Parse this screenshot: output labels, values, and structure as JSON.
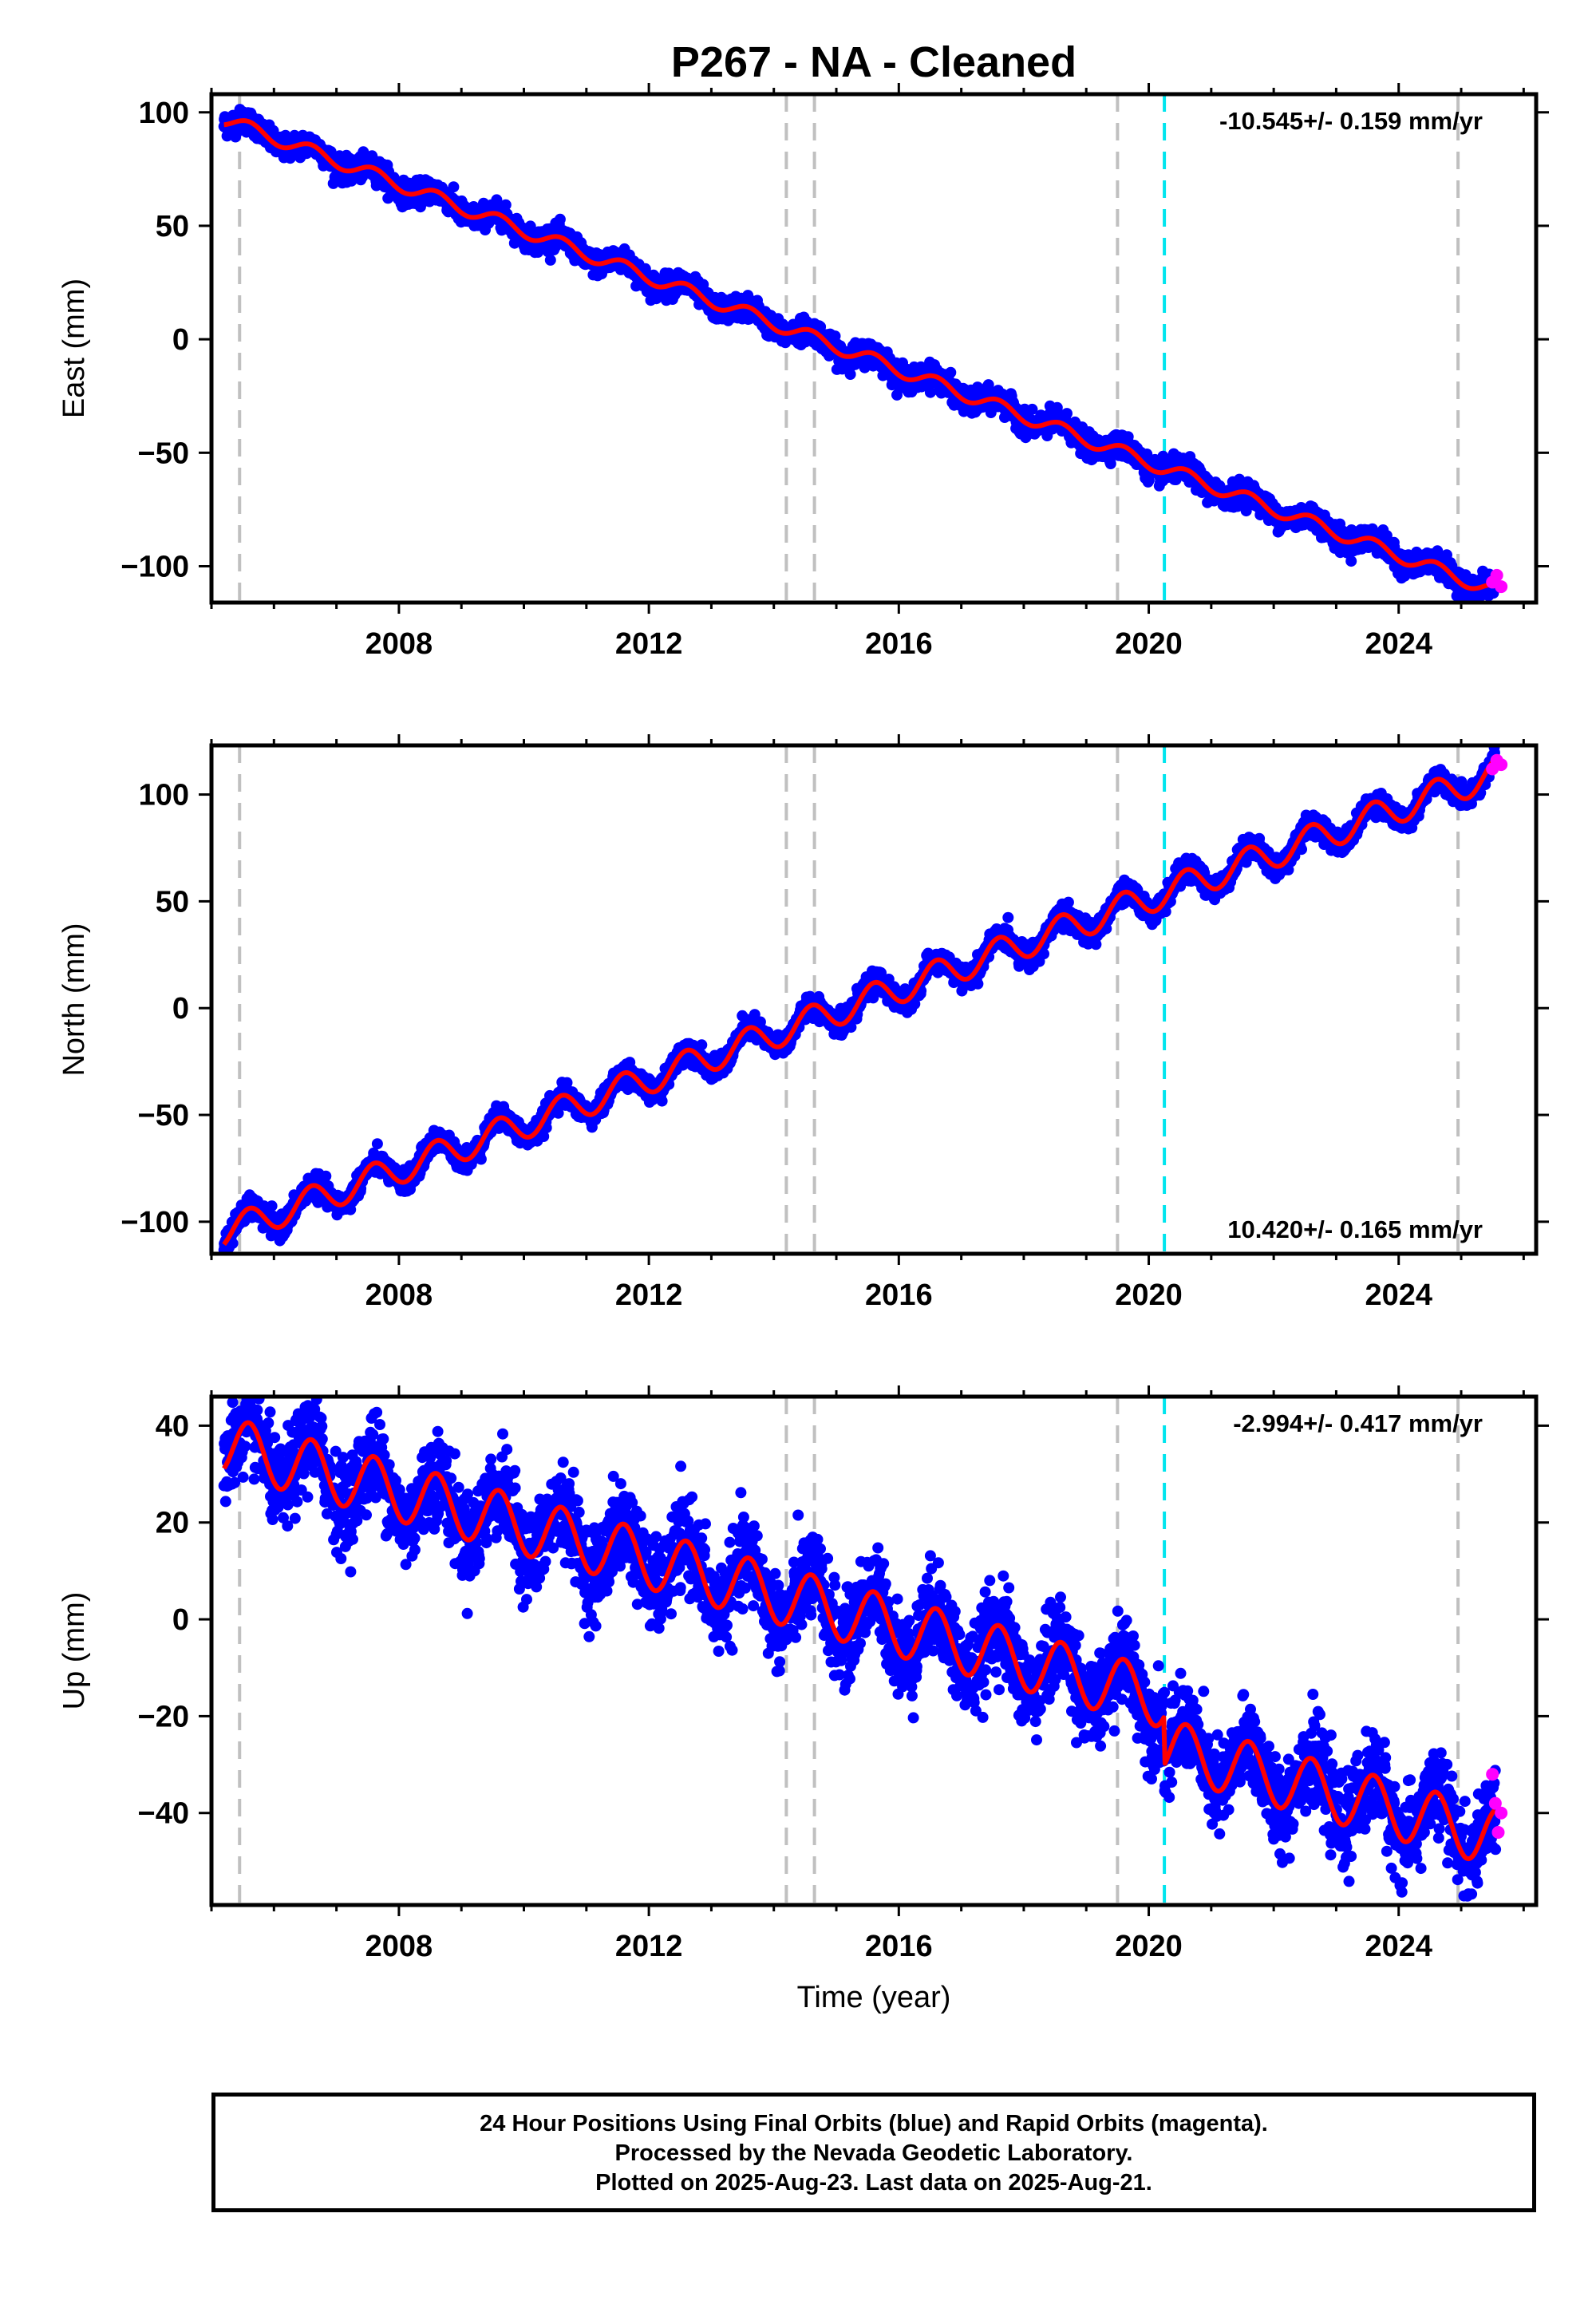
{
  "title": "P267  - NA - Cleaned",
  "x_axis_label": "Time (year)",
  "footer": {
    "line1": "24 Hour Positions Using Final Orbits (blue) and Rapid Orbits (magenta).",
    "line2": "Processed by the Nevada Geodetic Laboratory.",
    "line3": "Plotted on 2025-Aug-23. Last data on 2025-Aug-21."
  },
  "colors": {
    "final_orbits": "#0000ff",
    "rapid_orbits": "#ff00ff",
    "model_fit": "#ff0000",
    "equipment_change": "#c0c0c0",
    "earthquake": "#00e5ee"
  },
  "chart_data": [
    {
      "type": "scatter",
      "ylabel": "East (mm)",
      "xlabel": "",
      "xlim": [
        2005.0,
        2026.2
      ],
      "ylim": [
        -116,
        108
      ],
      "x_ticks": [
        2008,
        2012,
        2016,
        2020,
        2024
      ],
      "y_ticks": [
        -100,
        -50,
        0,
        50,
        100
      ],
      "rate_annotation": "-10.545+/- 0.159 mm/yr",
      "annotation_position": "top-right",
      "vertical_lines": {
        "equipment_change": [
          2005.45,
          2014.2,
          2014.65,
          2019.5,
          2024.95
        ],
        "earthquake": [
          2020.25
        ]
      },
      "series": [
        {
          "name": "Final Orbits (blue)",
          "x_range": [
            2005.2,
            2025.55
          ],
          "start": 97,
          "end": -111,
          "seasonal_amplitude": 3,
          "scatter": 2.5
        },
        {
          "name": "Rapid Orbits (magenta)",
          "x_range": [
            2025.5,
            2025.64
          ],
          "values": [
            -107,
            -104,
            -109
          ]
        },
        {
          "name": "Model fit",
          "x": [
            2005.2,
            2005.6,
            2005.9,
            2025.6
          ],
          "values": [
            97,
            105,
            102,
            -109
          ]
        }
      ]
    },
    {
      "type": "scatter",
      "ylabel": "North (mm)",
      "xlabel": "",
      "xlim": [
        2005.0,
        2026.2
      ],
      "ylim": [
        -115,
        123
      ],
      "x_ticks": [
        2008,
        2012,
        2016,
        2020,
        2024
      ],
      "y_ticks": [
        -100,
        -50,
        0,
        50,
        100
      ],
      "rate_annotation": "10.420+/- 0.165 mm/yr",
      "annotation_position": "bottom-right",
      "vertical_lines": {
        "equipment_change": [
          2005.45,
          2014.2,
          2014.65,
          2019.5,
          2024.95
        ],
        "earthquake": [
          2020.25
        ]
      },
      "series": [
        {
          "name": "Final Orbits (blue)",
          "x_range": [
            2005.2,
            2025.55
          ],
          "start": -105,
          "end": 110,
          "seasonal_amplitude": 7,
          "scatter": 2.5
        },
        {
          "name": "Rapid Orbits (magenta)",
          "x_range": [
            2025.5,
            2025.64
          ],
          "values": [
            112,
            116,
            114
          ]
        },
        {
          "name": "Model fit",
          "x": [
            2005.2,
            2025.6
          ],
          "values": [
            -106,
            111
          ]
        }
      ]
    },
    {
      "type": "scatter",
      "ylabel": "Up (mm)",
      "xlabel": "Time (year)",
      "xlim": [
        2005.0,
        2026.2
      ],
      "ylim": [
        -59,
        46
      ],
      "x_ticks": [
        2008,
        2012,
        2016,
        2020,
        2024
      ],
      "y_ticks": [
        -40,
        -20,
        0,
        20,
        40
      ],
      "rate_annotation": "-2.994+/- 0.417 mm/yr",
      "annotation_position": "top-right",
      "vertical_lines": {
        "equipment_change": [
          2005.45,
          2014.2,
          2014.65,
          2019.5,
          2024.95
        ],
        "earthquake": [
          2020.25
        ]
      },
      "series": [
        {
          "name": "Final Orbits (blue)",
          "x_range": [
            2005.2,
            2025.55
          ],
          "start": 31,
          "end": -40,
          "offset_at_2020_25": -10,
          "seasonal_amplitude": 6,
          "scatter": 4.5
        },
        {
          "name": "Rapid Orbits (magenta)",
          "x_range": [
            2025.5,
            2025.64
          ],
          "values": [
            -32,
            -38,
            -44,
            -40
          ]
        },
        {
          "name": "Model fit",
          "x": [
            2005.2,
            2025.6
          ],
          "values": [
            35,
            -43
          ]
        }
      ]
    }
  ]
}
